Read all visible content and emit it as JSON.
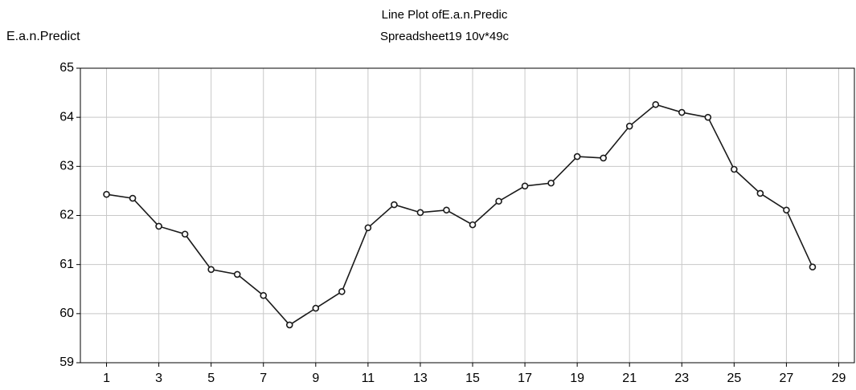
{
  "chart_data": {
    "type": "line",
    "title": "Line Plot ofE.a.n.Predic",
    "subtitle": "Spreadsheet19 10v*49c",
    "y_label": "E.a.n.Predict",
    "x": [
      1,
      2,
      3,
      4,
      5,
      6,
      7,
      8,
      9,
      10,
      11,
      12,
      13,
      14,
      15,
      16,
      17,
      18,
      19,
      20,
      21,
      22,
      23,
      24,
      25,
      26,
      27,
      28
    ],
    "series": [
      {
        "name": "E.a.n.Predict",
        "color": "#1a1a1a",
        "values": [
          62.43,
          62.35,
          61.78,
          61.62,
          60.9,
          60.8,
          60.37,
          59.77,
          60.11,
          60.45,
          61.75,
          62.22,
          62.06,
          62.11,
          61.81,
          62.29,
          62.6,
          62.66,
          63.2,
          63.17,
          63.82,
          64.26,
          64.1,
          64.0,
          62.94,
          62.45,
          62.11,
          60.95
        ]
      }
    ],
    "xlim": [
      0,
      29.6
    ],
    "xticks": [
      1,
      3,
      5,
      7,
      9,
      11,
      13,
      15,
      17,
      19,
      21,
      23,
      25,
      27,
      29
    ],
    "ylim": [
      59,
      65
    ],
    "yticks": [
      59,
      60,
      61,
      62,
      63,
      64,
      65
    ],
    "grid": true
  }
}
